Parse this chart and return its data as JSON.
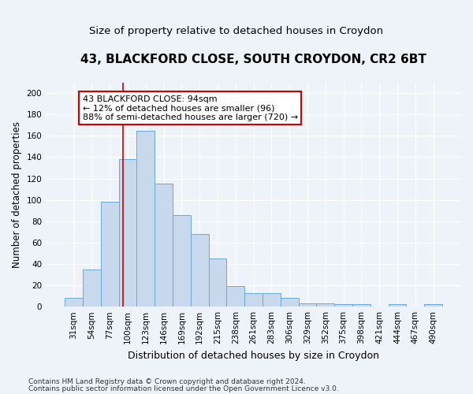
{
  "title": "43, BLACKFORD CLOSE, SOUTH CROYDON, CR2 6BT",
  "subtitle": "Size of property relative to detached houses in Croydon",
  "xlabel": "Distribution of detached houses by size in Croydon",
  "ylabel": "Number of detached properties",
  "categories": [
    "31sqm",
    "54sqm",
    "77sqm",
    "100sqm",
    "123sqm",
    "146sqm",
    "169sqm",
    "192sqm",
    "215sqm",
    "238sqm",
    "261sqm",
    "283sqm",
    "306sqm",
    "329sqm",
    "352sqm",
    "375sqm",
    "398sqm",
    "421sqm",
    "444sqm",
    "467sqm",
    "490sqm"
  ],
  "values": [
    8,
    35,
    98,
    138,
    165,
    115,
    86,
    68,
    45,
    19,
    13,
    13,
    8,
    3,
    3,
    2,
    2,
    0,
    2,
    0,
    2
  ],
  "bar_color": "#c8d9ee",
  "bar_edge_color": "#6aaad4",
  "background_color": "#eef2f9",
  "annotation_text": "43 BLACKFORD CLOSE: 94sqm\n← 12% of detached houses are smaller (96)\n88% of semi-detached houses are larger (720) →",
  "annotation_box_color": "white",
  "annotation_box_edge_color": "#cc0000",
  "red_line_color": "#cc0000",
  "ylim": [
    0,
    210
  ],
  "yticks": [
    0,
    20,
    40,
    60,
    80,
    100,
    120,
    140,
    160,
    180,
    200
  ],
  "footer_line1": "Contains HM Land Registry data © Crown copyright and database right 2024.",
  "footer_line2": "Contains public sector information licensed under the Open Government Licence v3.0.",
  "title_fontsize": 11,
  "subtitle_fontsize": 9.5,
  "xlabel_fontsize": 9,
  "ylabel_fontsize": 8.5,
  "tick_fontsize": 7.5,
  "annotation_fontsize": 8,
  "footer_fontsize": 6.5
}
